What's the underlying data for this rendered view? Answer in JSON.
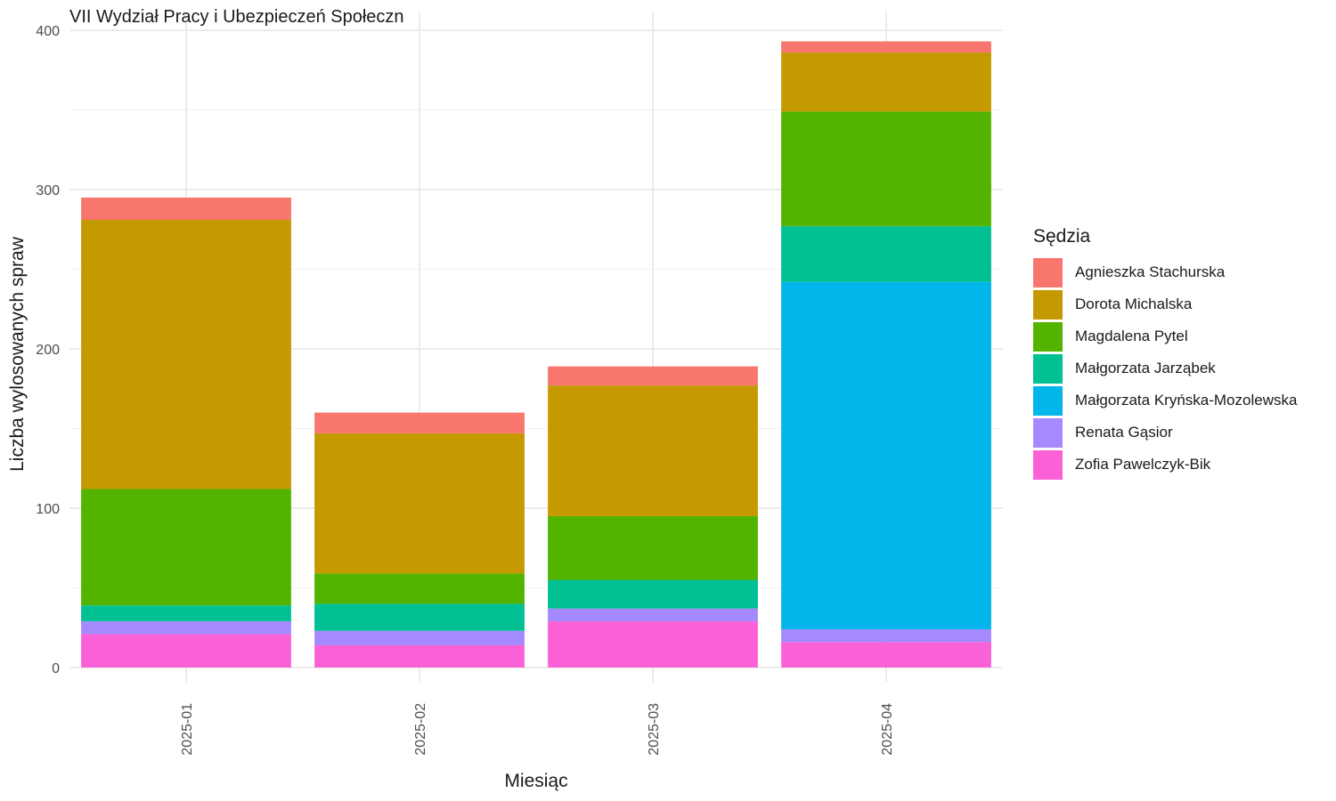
{
  "chart_data": {
    "type": "bar",
    "stacked": true,
    "title": "VII Wydział Pracy i Ubezpieczeń Społeczn",
    "xlabel": "Miesiąc",
    "ylabel": "Liczba wylosowanych spraw",
    "ylim": [
      0,
      400
    ],
    "yticks": [
      "0",
      "100",
      "200",
      "300",
      "400"
    ],
    "grid": true,
    "legend_title": "Sędzia",
    "legend_position": "right",
    "categories": [
      "2025-01",
      "2025-02",
      "2025-03",
      "2025-04"
    ],
    "series": [
      {
        "name": "Zofia Pawelczyk-Bik",
        "color": "#FB61D7",
        "values": [
          21,
          14,
          29,
          16
        ]
      },
      {
        "name": "Renata Gąsior",
        "color": "#A58AFF",
        "values": [
          8,
          9,
          8,
          8
        ]
      },
      {
        "name": "Małgorzata Kryńska-Mozolewska",
        "color": "#00B6EB",
        "values": [
          0,
          0,
          0,
          218
        ]
      },
      {
        "name": "Małgorzata Jarząbek",
        "color": "#00C094",
        "values": [
          10,
          17,
          18,
          35
        ]
      },
      {
        "name": "Magdalena Pytel",
        "color": "#53B400",
        "values": [
          73,
          19,
          40,
          72
        ]
      },
      {
        "name": "Dorota Michalska",
        "color": "#C49A00",
        "values": [
          169,
          88,
          82,
          37
        ]
      },
      {
        "name": "Agnieszka Stachurska",
        "color": "#F8766D",
        "values": [
          14,
          13,
          12,
          7
        ]
      }
    ],
    "legend_order": [
      "Agnieszka Stachurska",
      "Dorota Michalska",
      "Magdalena Pytel",
      "Małgorzata Jarząbek",
      "Małgorzata Kryńska-Mozolewska",
      "Renata Gąsior",
      "Zofia Pawelczyk-Bik"
    ]
  }
}
